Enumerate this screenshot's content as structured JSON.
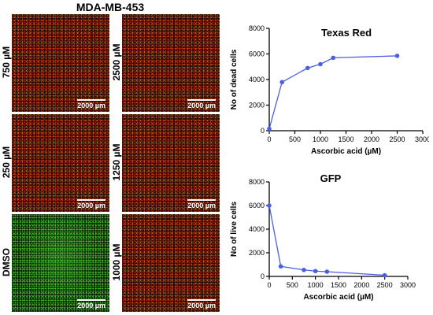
{
  "figure": {
    "title": "MDA-MB-453",
    "scale_label": "2000 µm"
  },
  "panels": [
    {
      "label": "750 µM",
      "color": "#1a0906"
    },
    {
      "label": "2500 µM",
      "color": "#1a0906"
    },
    {
      "label": "250 µM",
      "color": "#1a0906"
    },
    {
      "label": "1250 µM",
      "color": "#1a0906"
    },
    {
      "label": "DMSO",
      "color": "#031204"
    },
    {
      "label": "1000 µM",
      "color": "#1a0906"
    }
  ],
  "chart_data": [
    {
      "type": "line",
      "title": "Texas Red",
      "xlabel": "Ascorbic acid (µM)",
      "ylabel": "No of dead cells",
      "x": [
        0,
        250,
        750,
        1000,
        1250,
        2500
      ],
      "y": [
        150,
        3800,
        4900,
        5200,
        5700,
        5850
      ],
      "xlim": [
        0,
        3000
      ],
      "ylim": [
        0,
        8000
      ],
      "xticks": [
        0,
        500,
        1000,
        1500,
        2000,
        2500,
        3000
      ],
      "yticks": [
        0,
        2000,
        4000,
        6000,
        8000
      ],
      "color": "#4a5fe8"
    },
    {
      "type": "line",
      "title": "GFP",
      "xlabel": "Ascorbic acid (µM)",
      "ylabel": "No of live cells",
      "x": [
        0,
        250,
        750,
        1000,
        1250,
        2500
      ],
      "y": [
        6000,
        850,
        550,
        450,
        400,
        100
      ],
      "xlim": [
        0,
        3000
      ],
      "ylim": [
        0,
        8000
      ],
      "xticks": [
        0,
        500,
        1000,
        1500,
        2000,
        2500,
        3000
      ],
      "yticks": [
        0,
        2000,
        4000,
        6000,
        8000
      ],
      "color": "#4a5fe8"
    }
  ]
}
